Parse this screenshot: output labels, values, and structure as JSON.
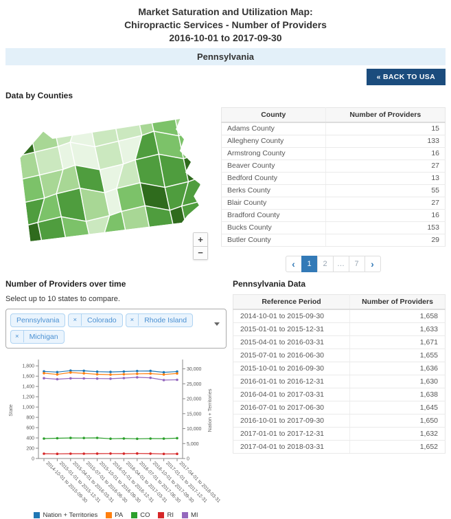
{
  "header": {
    "title_line1": "Market Saturation and Utilization Map:",
    "title_line2": "Chiropractic Services - Number of Providers",
    "title_line3": "2016-10-01 to 2017-09-30"
  },
  "banner": {
    "label": "Pennsylvania",
    "bg": "#e3f0f9"
  },
  "back_button": {
    "label": "« BACK TO USA",
    "bg": "#1b4c7d"
  },
  "counties": {
    "heading": "Data by Counties",
    "table": {
      "headers": [
        "County",
        "Number of Providers"
      ],
      "rows": [
        [
          "Adams County",
          "15"
        ],
        [
          "Allegheny County",
          "133"
        ],
        [
          "Armstrong County",
          "16"
        ],
        [
          "Beaver County",
          "27"
        ],
        [
          "Bedford County",
          "13"
        ],
        [
          "Berks County",
          "55"
        ],
        [
          "Blair County",
          "27"
        ],
        [
          "Bradford County",
          "16"
        ],
        [
          "Bucks County",
          "153"
        ],
        [
          "Butler County",
          "29"
        ]
      ]
    },
    "pagination": {
      "prev": "‹",
      "next": "›",
      "pages": [
        "1",
        "2",
        "…",
        "7"
      ],
      "active": "1",
      "active_color": "#337ab7"
    }
  },
  "map": {
    "zoom_in": "+",
    "zoom_out": "−",
    "palette": [
      "#e8f5e3",
      "#cbe8bf",
      "#a8d795",
      "#7cc269",
      "#4f9d3e",
      "#2f6b1d"
    ],
    "shade_grid": [
      [
        5,
        2,
        1,
        0,
        1,
        1,
        2,
        3,
        2
      ],
      [
        2,
        1,
        0,
        0,
        1,
        0,
        4,
        3,
        3
      ],
      [
        3,
        2,
        2,
        4,
        0,
        1,
        4,
        4,
        5
      ],
      [
        4,
        3,
        4,
        2,
        0,
        3,
        5,
        4,
        4
      ],
      [
        5,
        4,
        3,
        1,
        3,
        2,
        4,
        5,
        4
      ]
    ]
  },
  "timeline": {
    "heading": "Number of Providers over time",
    "instruction": "Select up to 10 states to compare.",
    "chips": [
      {
        "label": "Pennsylvania",
        "removable": false
      },
      {
        "label": "Colorado",
        "removable": true
      },
      {
        "label": "Rhode Island",
        "removable": true
      },
      {
        "label": "Michigan",
        "removable": true
      }
    ],
    "chip_colors": {
      "bg": "#eaf4fd",
      "border": "#aed3f2",
      "text": "#4a90d2"
    }
  },
  "state_data": {
    "heading": "Pennsylvania Data",
    "table": {
      "headers": [
        "Reference Period",
        "Number of Providers"
      ],
      "rows": [
        [
          "2014-10-01 to 2015-09-30",
          "1,658"
        ],
        [
          "2015-01-01 to 2015-12-31",
          "1,633"
        ],
        [
          "2015-04-01 to 2016-03-31",
          "1,671"
        ],
        [
          "2015-07-01 to 2016-06-30",
          "1,655"
        ],
        [
          "2015-10-01 to 2016-09-30",
          "1,636"
        ],
        [
          "2016-01-01 to 2016-12-31",
          "1,630"
        ],
        [
          "2016-04-01 to 2017-03-31",
          "1,638"
        ],
        [
          "2016-07-01 to 2017-06-30",
          "1,645"
        ],
        [
          "2016-10-01 to 2017-09-30",
          "1,650"
        ],
        [
          "2017-01-01 to 2017-12-31",
          "1,632"
        ],
        [
          "2017-04-01 to 2018-03-31",
          "1,652"
        ]
      ]
    }
  },
  "chart_data": {
    "type": "line",
    "x": [
      "2014-10-01 to 2015-09-30",
      "2015-01-01 to 2015-12-31",
      "2015-04-01 to 2016-03-31",
      "2015-07-01 to 2016-06-30",
      "2015-10-01 to 2016-09-30",
      "2016-01-01 to 2016-12-31",
      "2016-04-01 to 2017-03-31",
      "2016-07-01 to 2017-06-30",
      "2016-10-01 to 2017-09-30",
      "2017-01-01 to 2017-12-31",
      "2017-04-01 to 2018-03-31"
    ],
    "left_axis": {
      "label": "State",
      "ticks": [
        0,
        200,
        400,
        600,
        800,
        1000,
        1200,
        1400,
        1600,
        1800
      ],
      "max": 1870
    },
    "right_axis": {
      "label": "Nation + Territories",
      "ticks": [
        0,
        5000,
        10000,
        15000,
        20000,
        25000,
        30000
      ],
      "max": 32200
    },
    "series": [
      {
        "name": "Nation + Territories",
        "color": "#1f77b4",
        "axis": "right",
        "values": [
          29150,
          28900,
          29400,
          29350,
          29050,
          28950,
          29100,
          29250,
          29300,
          28850,
          29100
        ]
      },
      {
        "name": "PA",
        "color": "#ff7f0e",
        "axis": "left",
        "values": [
          1658,
          1633,
          1671,
          1655,
          1636,
          1630,
          1638,
          1645,
          1650,
          1632,
          1652
        ]
      },
      {
        "name": "CO",
        "color": "#2ca02c",
        "axis": "left",
        "values": [
          388,
          394,
          399,
          398,
          401,
          385,
          389,
          384,
          388,
          386,
          396
        ]
      },
      {
        "name": "RI",
        "color": "#d62728",
        "axis": "left",
        "values": [
          93,
          91,
          94,
          94,
          95,
          96,
          95,
          97,
          95,
          90,
          91
        ]
      },
      {
        "name": "MI",
        "color": "#9467bd",
        "axis": "left",
        "values": [
          1560,
          1542,
          1558,
          1556,
          1553,
          1551,
          1563,
          1578,
          1568,
          1524,
          1530
        ]
      }
    ],
    "legend_position": "bottom",
    "grid": false
  }
}
